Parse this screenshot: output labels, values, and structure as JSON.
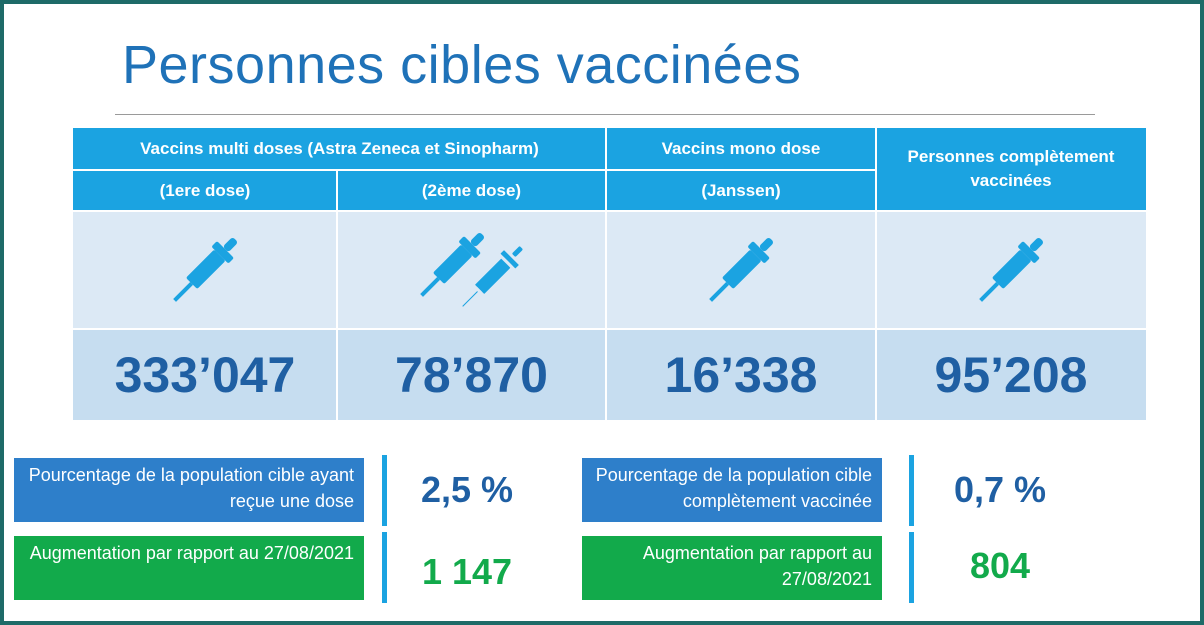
{
  "title": "Personnes cibles vaccinées",
  "table": {
    "headers": {
      "multi_doses": "Vaccins multi doses (Astra Zeneca et Sinopharm)",
      "dose1": "(1ere dose)",
      "dose2": "(2ème dose)",
      "mono_dose": "Vaccins mono dose",
      "janssen": "(Janssen)",
      "fully": "Personnes complètement vaccinées"
    },
    "icons": [
      "syringe-icon",
      "double-syringe-icon",
      "syringe-icon",
      "syringe-icon"
    ],
    "values": {
      "dose1": "333’047",
      "dose2": "78’870",
      "janssen": "16’338",
      "fully": "95’208"
    }
  },
  "stats": {
    "pct_one_dose_label": "Pourcentage de la population cible ayant reçue une dose",
    "pct_one_dose_value": "2,5 %",
    "increase_left_label": "Augmentation par rapport au 27/08/2021",
    "increase_left_value": "1 147",
    "pct_full_label": "Pourcentage de la population cible complètement vaccinée",
    "pct_full_value": "0,7 %",
    "increase_right_label": "Augmentation par rapport au 27/08/2021",
    "increase_right_value": "804"
  },
  "colors": {
    "header_bg": "#1ba3e1",
    "title": "#1f72b8",
    "numbers": "#1f5fa3",
    "label_blue": "#2e7fca",
    "label_green": "#12aa4b",
    "frame": "#1e6b68"
  }
}
